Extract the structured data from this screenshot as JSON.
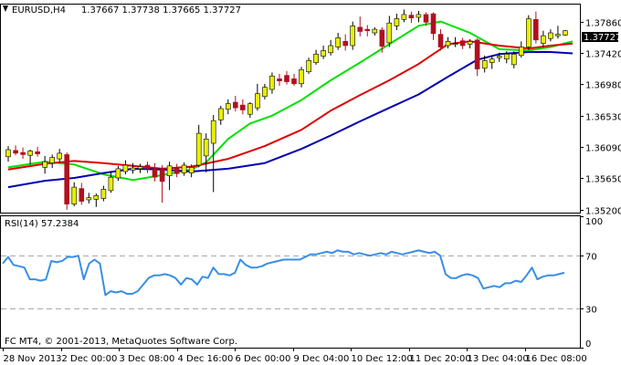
{
  "header": {
    "symbol_info": "EURUSD,H4",
    "ohlc": "1.37667 1.37738 1.37665 1.37727"
  },
  "indicator": {
    "label": "RSI(14) 57.2384"
  },
  "footer": {
    "copyright": "FC MT4, © 2001-2013, MetaQuotes Software Corp."
  },
  "colors": {
    "background": "#ffffff",
    "frame": "#000000",
    "bull_candle": "#e8f000",
    "bear_candle": "#b01020",
    "ma_fast": "#00e000",
    "ma_mid": "#e00000",
    "ma_slow": "#0000b0",
    "rsi_line": "#3a8ee6",
    "level_line": "#aaaaaa"
  },
  "chart_data": [
    {
      "type": "candlestick",
      "symbol": "EURUSD",
      "timeframe": "H4",
      "ylim": [
        1.3516,
        1.381
      ],
      "y_ticks": [
        "1.37860",
        "1.37420",
        "1.36980",
        "1.36530",
        "1.36090",
        "1.35650",
        "1.35200"
      ],
      "current_price_label": "1.37727",
      "x_tick_labels": [
        "28 Nov 2013",
        "2 Dec 00:00",
        "3 Dec 08:00",
        "4 Dec 16:00",
        "6 Dec 00:00",
        "9 Dec 04:00",
        "10 Dec 12:00",
        "11 Dec 20:00",
        "13 Dec 04:00",
        "16 Dec 08:00"
      ],
      "candles": [
        [
          1.3595,
          1.361,
          1.3588,
          1.3605
        ],
        [
          1.3604,
          1.3611,
          1.3597,
          1.36
        ],
        [
          1.3601,
          1.3608,
          1.3592,
          1.3598
        ],
        [
          1.3597,
          1.3605,
          1.3584,
          1.3603
        ],
        [
          1.3602,
          1.3609,
          1.3595,
          1.3599
        ],
        [
          1.358,
          1.3596,
          1.3571,
          1.3588
        ],
        [
          1.3586,
          1.3598,
          1.3579,
          1.3594
        ],
        [
          1.3592,
          1.3606,
          1.3586,
          1.36
        ],
        [
          1.3598,
          1.3601,
          1.352,
          1.3528
        ],
        [
          1.3528,
          1.3559,
          1.3525,
          1.3552
        ],
        [
          1.355,
          1.3558,
          1.3527,
          1.3532
        ],
        [
          1.3534,
          1.3544,
          1.3529,
          1.3537
        ],
        [
          1.3535,
          1.3543,
          1.3524,
          1.354
        ],
        [
          1.3536,
          1.3554,
          1.3532,
          1.3549
        ],
        [
          1.3547,
          1.3574,
          1.3544,
          1.3566
        ],
        [
          1.3565,
          1.3582,
          1.3561,
          1.3578
        ],
        [
          1.3574,
          1.359,
          1.357,
          1.3583
        ],
        [
          1.3576,
          1.3586,
          1.3571,
          1.3579
        ],
        [
          1.3578,
          1.3585,
          1.3572,
          1.3581
        ],
        [
          1.3583,
          1.3588,
          1.3572,
          1.3578
        ],
        [
          1.3577,
          1.3586,
          1.356,
          1.3566
        ],
        [
          1.3577,
          1.3583,
          1.353,
          1.356
        ],
        [
          1.3568,
          1.3588,
          1.3548,
          1.3582
        ],
        [
          1.3579,
          1.3585,
          1.3566,
          1.3571
        ],
        [
          1.3572,
          1.3587,
          1.3568,
          1.3583
        ],
        [
          1.3572,
          1.3584,
          1.3566,
          1.358
        ],
        [
          1.3583,
          1.364,
          1.358,
          1.3628
        ],
        [
          1.3596,
          1.3628,
          1.3573,
          1.362
        ],
        [
          1.3614,
          1.3654,
          1.3545,
          1.3646
        ],
        [
          1.3647,
          1.3667,
          1.364,
          1.3663
        ],
        [
          1.3662,
          1.3676,
          1.3655,
          1.367
        ],
        [
          1.3672,
          1.3681,
          1.3659,
          1.3664
        ],
        [
          1.3668,
          1.3676,
          1.3655,
          1.3661
        ],
        [
          1.3655,
          1.3672,
          1.365,
          1.367
        ],
        [
          1.3664,
          1.3698,
          1.366,
          1.3684
        ],
        [
          1.368,
          1.3698,
          1.3676,
          1.3693
        ],
        [
          1.369,
          1.3714,
          1.3684,
          1.3709
        ],
        [
          1.3705,
          1.3712,
          1.3695,
          1.3702
        ],
        [
          1.371,
          1.3716,
          1.3697,
          1.3701
        ],
        [
          1.3705,
          1.3712,
          1.3695,
          1.3698
        ],
        [
          1.3698,
          1.3722,
          1.3693,
          1.3718
        ],
        [
          1.3715,
          1.3735,
          1.3712,
          1.3731
        ],
        [
          1.3728,
          1.3746,
          1.3725,
          1.374
        ],
        [
          1.3737,
          1.3752,
          1.3733,
          1.3745
        ],
        [
          1.3742,
          1.376,
          1.3738,
          1.3752
        ],
        [
          1.375,
          1.377,
          1.3746,
          1.3763
        ],
        [
          1.3758,
          1.3768,
          1.3745,
          1.3752
        ],
        [
          1.3752,
          1.3786,
          1.3746,
          1.378
        ],
        [
          1.3778,
          1.3793,
          1.3765,
          1.3772
        ],
        [
          1.3775,
          1.3781,
          1.3765,
          1.3773
        ],
        [
          1.377,
          1.3778,
          1.3766,
          1.3775
        ],
        [
          1.3774,
          1.3778,
          1.3742,
          1.3751
        ],
        [
          1.3756,
          1.3794,
          1.375,
          1.3784
        ],
        [
          1.378,
          1.3797,
          1.3774,
          1.379
        ],
        [
          1.3789,
          1.3803,
          1.3785,
          1.3796
        ],
        [
          1.3795,
          1.38,
          1.3784,
          1.3791
        ],
        [
          1.3792,
          1.3801,
          1.3785,
          1.3796
        ],
        [
          1.3796,
          1.3799,
          1.378,
          1.3785
        ],
        [
          1.3797,
          1.3799,
          1.376,
          1.3769
        ],
        [
          1.3768,
          1.3775,
          1.3745,
          1.375
        ],
        [
          1.3752,
          1.3764,
          1.3748,
          1.3758
        ],
        [
          1.3755,
          1.3764,
          1.375,
          1.3755
        ],
        [
          1.3759,
          1.3763,
          1.3747,
          1.3752
        ],
        [
          1.3754,
          1.3761,
          1.3748,
          1.3758
        ],
        [
          1.376,
          1.3762,
          1.3709,
          1.3719
        ],
        [
          1.372,
          1.3738,
          1.3714,
          1.3731
        ],
        [
          1.3728,
          1.3738,
          1.3719,
          1.3733
        ],
        [
          1.3735,
          1.3742,
          1.3729,
          1.3737
        ],
        [
          1.3733,
          1.3744,
          1.3727,
          1.374
        ],
        [
          1.3725,
          1.3744,
          1.372,
          1.374
        ],
        [
          1.3738,
          1.3758,
          1.3735,
          1.375
        ],
        [
          1.375,
          1.3795,
          1.3746,
          1.379
        ],
        [
          1.3789,
          1.38,
          1.3755,
          1.376
        ],
        [
          1.3755,
          1.3773,
          1.375,
          1.3766
        ],
        [
          1.3762,
          1.3775,
          1.3758,
          1.377
        ],
        [
          1.3766,
          1.378,
          1.3762,
          1.3768
        ],
        [
          1.3767,
          1.3774,
          1.3766,
          1.3773
        ]
      ],
      "series": [
        {
          "name": "",
          "type": "line",
          "color": "#00e000",
          "values": [
            [
              0,
              1.358
            ],
            [
              5,
              1.3588
            ],
            [
              9,
              1.3584
            ],
            [
              13,
              1.357
            ],
            [
              17,
              1.3562
            ],
            [
              21,
              1.3569
            ],
            [
              25,
              1.3577
            ],
            [
              27,
              1.3587
            ],
            [
              30,
              1.362
            ],
            [
              33,
              1.3642
            ],
            [
              36,
              1.3653
            ],
            [
              40,
              1.3675
            ],
            [
              44,
              1.3703
            ],
            [
              48,
              1.3728
            ],
            [
              52,
              1.3754
            ],
            [
              56,
              1.378
            ],
            [
              59,
              1.3786
            ],
            [
              63,
              1.377
            ],
            [
              67,
              1.3747
            ],
            [
              71,
              1.3745
            ],
            [
              74,
              1.375
            ],
            [
              77,
              1.3758
            ]
          ]
        },
        {
          "name": "",
          "type": "line",
          "color": "#e00000",
          "values": [
            [
              0,
              1.3577
            ],
            [
              5,
              1.3585
            ],
            [
              9,
              1.3589
            ],
            [
              13,
              1.3586
            ],
            [
              17,
              1.3582
            ],
            [
              21,
              1.3578
            ],
            [
              25,
              1.3581
            ],
            [
              30,
              1.3592
            ],
            [
              35,
              1.361
            ],
            [
              40,
              1.3633
            ],
            [
              44,
              1.366
            ],
            [
              48,
              1.3682
            ],
            [
              52,
              1.3703
            ],
            [
              56,
              1.3726
            ],
            [
              60,
              1.3754
            ],
            [
              63,
              1.3758
            ],
            [
              67,
              1.3752
            ],
            [
              71,
              1.3748
            ],
            [
              74,
              1.3752
            ],
            [
              77,
              1.3755
            ]
          ]
        },
        {
          "name": "",
          "type": "line",
          "color": "#0000b0",
          "values": [
            [
              0,
              1.3552
            ],
            [
              5,
              1.3561
            ],
            [
              9,
              1.3565
            ],
            [
              13,
              1.3572
            ],
            [
              17,
              1.3578
            ],
            [
              21,
              1.3577
            ],
            [
              25,
              1.3574
            ],
            [
              30,
              1.3578
            ],
            [
              35,
              1.3586
            ],
            [
              40,
              1.3606
            ],
            [
              44,
              1.3625
            ],
            [
              48,
              1.3645
            ],
            [
              52,
              1.3664
            ],
            [
              56,
              1.3683
            ],
            [
              60,
              1.3708
            ],
            [
              64,
              1.3732
            ],
            [
              67,
              1.374
            ],
            [
              71,
              1.3743
            ],
            [
              74,
              1.3743
            ],
            [
              77,
              1.3741
            ]
          ]
        }
      ]
    },
    {
      "type": "line",
      "indicator": "RSI(14)",
      "ylim": [
        0,
        100
      ],
      "y_ticks": [
        "100",
        "70",
        "30",
        "0"
      ],
      "levels": [
        70,
        30
      ],
      "series": [
        {
          "name": "",
          "color": "#3a8ee6",
          "values": [
            64,
            69,
            63,
            62,
            61,
            52,
            52,
            51,
            52,
            66,
            65,
            66,
            69,
            69,
            70,
            52,
            64,
            67,
            64,
            40,
            43,
            42,
            43,
            41,
            41,
            43,
            48,
            53,
            55,
            55,
            56,
            55,
            53,
            48,
            53,
            52,
            48,
            54,
            53,
            61,
            56,
            56,
            55,
            57,
            67,
            63,
            61,
            61,
            62,
            64,
            65,
            66,
            67,
            67,
            67,
            67,
            69,
            71,
            71,
            72,
            73,
            72,
            74,
            73,
            73,
            71,
            72,
            71,
            70,
            71,
            72,
            71,
            73,
            72,
            71,
            72,
            73,
            74,
            73,
            72,
            73,
            70,
            56,
            53,
            53,
            55,
            56,
            55,
            53,
            45,
            46,
            47,
            46,
            49,
            49,
            51,
            50,
            55,
            61,
            52,
            54,
            55,
            55,
            56,
            57
          ]
        }
      ]
    }
  ]
}
